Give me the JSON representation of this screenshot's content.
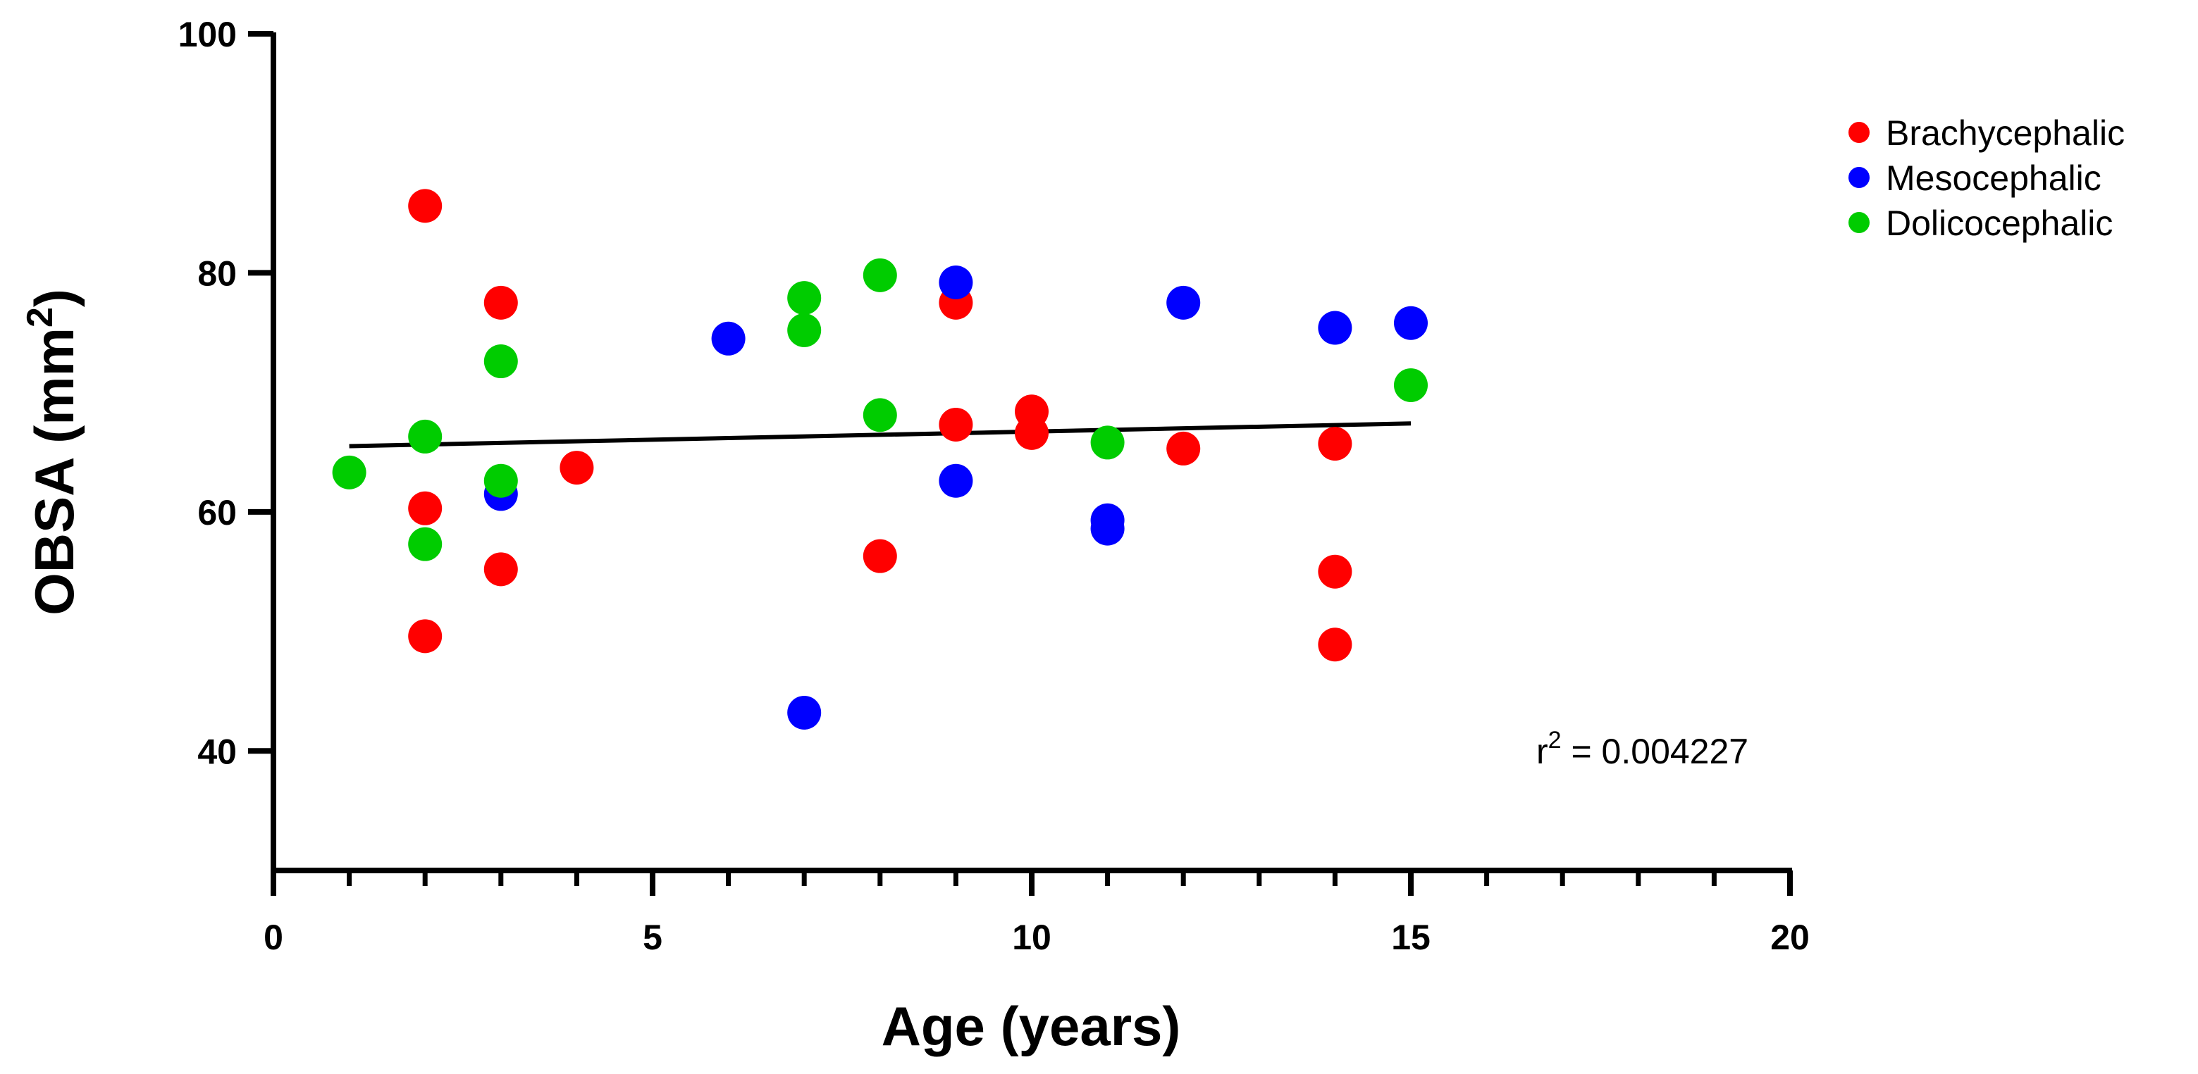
{
  "chart_data": {
    "type": "scatter",
    "xlabel": "Age (years)",
    "ylabel": {
      "main": "OBSA (mm",
      "sup": "2",
      "close": ")"
    },
    "xlim": [
      0,
      20
    ],
    "ylim": [
      30,
      100
    ],
    "x_ticks": [
      0,
      5,
      10,
      15,
      20
    ],
    "x_minor_ticks": [
      1,
      2,
      3,
      4,
      6,
      7,
      8,
      9,
      11,
      12,
      13,
      14,
      16,
      17,
      18,
      19
    ],
    "y_ticks": [
      40,
      60,
      80,
      100
    ],
    "y_minor_ticks": [],
    "grid": false,
    "legend_position": "top-right",
    "series": [
      {
        "name": "Brachycephalic",
        "color": "#ff0000",
        "points": [
          {
            "x": 2,
            "y": 85.6
          },
          {
            "x": 2,
            "y": 60.3
          },
          {
            "x": 2,
            "y": 49.6
          },
          {
            "x": 3,
            "y": 77.5
          },
          {
            "x": 3,
            "y": 55.2
          },
          {
            "x": 4,
            "y": 63.7
          },
          {
            "x": 8,
            "y": 56.3
          },
          {
            "x": 9,
            "y": 77.5
          },
          {
            "x": 9,
            "y": 67.3
          },
          {
            "x": 10,
            "y": 68.4
          },
          {
            "x": 10,
            "y": 66.6
          },
          {
            "x": 12,
            "y": 65.3
          },
          {
            "x": 14,
            "y": 65.7
          },
          {
            "x": 14,
            "y": 55.0
          },
          {
            "x": 14,
            "y": 48.9
          }
        ]
      },
      {
        "name": "Mesocephalic",
        "color": "#0000ff",
        "points": [
          {
            "x": 3,
            "y": 61.5
          },
          {
            "x": 6,
            "y": 74.5
          },
          {
            "x": 7,
            "y": 43.2
          },
          {
            "x": 9,
            "y": 79.2
          },
          {
            "x": 9,
            "y": 62.6
          },
          {
            "x": 11,
            "y": 59.3
          },
          {
            "x": 11,
            "y": 58.6
          },
          {
            "x": 12,
            "y": 77.5
          },
          {
            "x": 14,
            "y": 75.4
          },
          {
            "x": 15,
            "y": 75.8
          }
        ]
      },
      {
        "name": "Dolicocephalic",
        "color": "#00cc00",
        "points": [
          {
            "x": 1,
            "y": 63.3
          },
          {
            "x": 2,
            "y": 66.3
          },
          {
            "x": 2,
            "y": 57.3
          },
          {
            "x": 3,
            "y": 72.6
          },
          {
            "x": 3,
            "y": 62.6
          },
          {
            "x": 7,
            "y": 77.9
          },
          {
            "x": 7,
            "y": 75.2
          },
          {
            "x": 8,
            "y": 79.8
          },
          {
            "x": 8,
            "y": 68.1
          },
          {
            "x": 11,
            "y": 65.8
          },
          {
            "x": 15,
            "y": 70.6
          }
        ]
      }
    ],
    "regression": {
      "x_start": 1,
      "y_start": 65.5,
      "x_end": 15,
      "y_end": 67.4,
      "color": "#000000"
    },
    "annotation": {
      "prefix": "r",
      "sup": "2",
      "suffix": " = 0.004227"
    }
  }
}
